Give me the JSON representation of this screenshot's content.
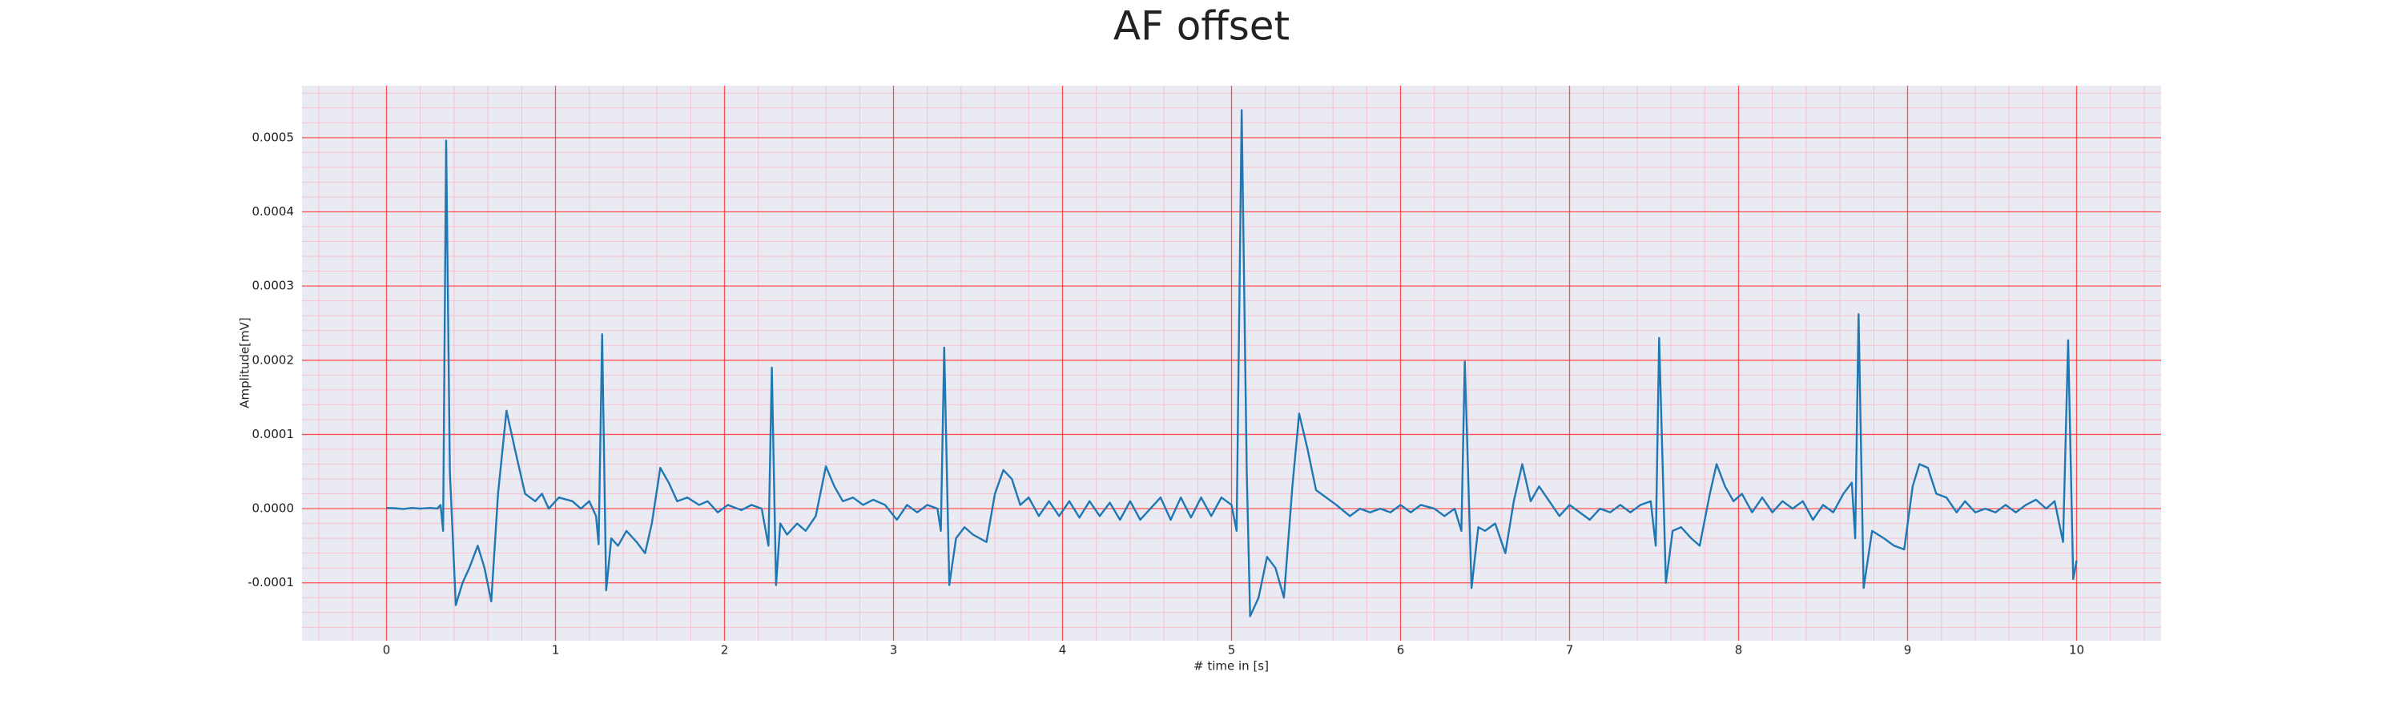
{
  "chart_data": {
    "type": "line",
    "title": "AF offset",
    "xlabel": "# time in [s]",
    "ylabel": "Amplitude[mV]",
    "color": "#1f77b4",
    "background": "#eaeaf2",
    "grid": true,
    "grid_color": "#ff3b3b",
    "minor_grid": true,
    "minor_grid_color": "#f7b8c6",
    "xlim": [
      -0.5,
      10.5
    ],
    "ylim": [
      -0.000178,
      0.00057
    ],
    "xticks": [
      0,
      1,
      2,
      3,
      4,
      5,
      6,
      7,
      8,
      9,
      10
    ],
    "yticks": [
      -0.0001,
      {
        "value": 0,
        "label": "0.0000"
      },
      0.0001,
      0.0002,
      0.0003,
      0.0004,
      0.0005
    ],
    "x": [
      0,
      0.05,
      0.1,
      0.15,
      0.2,
      0.26,
      0.3,
      0.32,
      0.335,
      0.353,
      0.375,
      0.41,
      0.45,
      0.49,
      0.54,
      0.58,
      0.62,
      0.66,
      0.71,
      0.76,
      0.82,
      0.88,
      0.92,
      0.96,
      1.02,
      1.1,
      1.15,
      1.2,
      1.24,
      1.255,
      1.276,
      1.3,
      1.33,
      1.37,
      1.42,
      1.48,
      1.53,
      1.57,
      1.62,
      1.67,
      1.72,
      1.78,
      1.85,
      1.9,
      1.96,
      2.02,
      2.1,
      2.16,
      2.22,
      2.26,
      2.28,
      2.305,
      2.33,
      2.37,
      2.43,
      2.48,
      2.54,
      2.6,
      2.65,
      2.7,
      2.76,
      2.82,
      2.88,
      2.95,
      3.02,
      3.08,
      3.14,
      3.2,
      3.26,
      3.28,
      3.3,
      3.33,
      3.37,
      3.42,
      3.47,
      3.55,
      3.6,
      3.65,
      3.7,
      3.75,
      3.8,
      3.86,
      3.92,
      3.98,
      4.04,
      4.1,
      4.16,
      4.22,
      4.28,
      4.34,
      4.4,
      4.46,
      4.52,
      4.58,
      4.64,
      4.7,
      4.76,
      4.82,
      4.88,
      4.94,
      5.0,
      5.03,
      5.06,
      5.09,
      5.11,
      5.16,
      5.21,
      5.26,
      5.31,
      5.36,
      5.4,
      5.45,
      5.5,
      5.56,
      5.62,
      5.7,
      5.76,
      5.82,
      5.88,
      5.94,
      6.0,
      6.06,
      6.12,
      6.2,
      6.26,
      6.32,
      6.36,
      6.38,
      6.42,
      6.46,
      6.5,
      6.56,
      6.62,
      6.67,
      6.72,
      6.77,
      6.82,
      6.88,
      6.94,
      7.0,
      7.06,
      7.12,
      7.18,
      7.24,
      7.3,
      7.36,
      7.42,
      7.48,
      7.51,
      7.53,
      7.57,
      7.61,
      7.66,
      7.72,
      7.77,
      7.83,
      7.87,
      7.92,
      7.97,
      8.02,
      8.08,
      8.14,
      8.2,
      8.26,
      8.32,
      8.38,
      8.44,
      8.5,
      8.56,
      8.62,
      8.67,
      8.69,
      8.71,
      8.74,
      8.79,
      8.86,
      8.92,
      8.98,
      9.03,
      9.07,
      9.12,
      9.17,
      9.23,
      9.29,
      9.34,
      9.4,
      9.46,
      9.52,
      9.58,
      9.64,
      9.7,
      9.76,
      9.82,
      9.87,
      9.92,
      9.95,
      9.98,
      10.0
    ],
    "values": [
      1e-06,
      5e-07,
      -5e-07,
      1e-06,
      0,
      1e-06,
      0,
      5e-06,
      -3e-05,
      0.000496,
      5e-05,
      -0.00013,
      -0.0001,
      -8e-05,
      -5e-05,
      -8e-05,
      -0.000125,
      2e-05,
      0.000132,
      8e-05,
      2e-05,
      1e-05,
      2e-05,
      0,
      1.5e-05,
      1e-05,
      0,
      1e-05,
      -1e-05,
      -4.8e-05,
      0.000235,
      -0.00011,
      -4e-05,
      -5e-05,
      -3e-05,
      -4.5e-05,
      -6e-05,
      -2e-05,
      5.5e-05,
      3.5e-05,
      1e-05,
      1.5e-05,
      5e-06,
      1e-05,
      -5e-06,
      5e-06,
      -2e-06,
      5e-06,
      0,
      -5e-05,
      0.00019,
      -0.000103,
      -2e-05,
      -3.5e-05,
      -2e-05,
      -3e-05,
      -1e-05,
      5.7e-05,
      3e-05,
      1e-05,
      1.5e-05,
      5e-06,
      1.2e-05,
      5e-06,
      -1.5e-05,
      5e-06,
      -5e-06,
      5e-06,
      0,
      -3e-05,
      0.000217,
      -0.000103,
      -4e-05,
      -2.5e-05,
      -3.5e-05,
      -4.5e-05,
      2e-05,
      5.2e-05,
      4e-05,
      5e-06,
      1.5e-05,
      -1e-05,
      1e-05,
      -1e-05,
      1e-05,
      -1.2e-05,
      1e-05,
      -1e-05,
      8e-06,
      -1.5e-05,
      1e-05,
      -1.5e-05,
      0,
      1.5e-05,
      -1.5e-05,
      1.5e-05,
      -1.2e-05,
      1.5e-05,
      -1e-05,
      1.5e-05,
      5e-06,
      -3e-05,
      0.000537,
      5e-05,
      -0.000145,
      -0.00012,
      -6.5e-05,
      -8e-05,
      -0.00012,
      3e-05,
      0.000128,
      8e-05,
      2.5e-05,
      1.5e-05,
      5e-06,
      -1e-05,
      0,
      -5e-06,
      0,
      -5e-06,
      5e-06,
      -5e-06,
      5e-06,
      0,
      -1e-05,
      0,
      -3e-05,
      0.000198,
      -0.000107,
      -2.5e-05,
      -3e-05,
      -2e-05,
      -6e-05,
      1e-05,
      6e-05,
      1e-05,
      3e-05,
      1e-05,
      -1e-05,
      5e-06,
      -5e-06,
      -1.5e-05,
      0,
      -5e-06,
      5e-06,
      -5e-06,
      5e-06,
      1e-05,
      -5e-05,
      0.00023,
      -0.0001,
      -3e-05,
      -2.5e-05,
      -4e-05,
      -5e-05,
      2e-05,
      6e-05,
      3e-05,
      1e-05,
      2e-05,
      -5e-06,
      1.5e-05,
      -5e-06,
      1e-05,
      0,
      1e-05,
      -1.5e-05,
      5e-06,
      -5e-06,
      2e-05,
      3.5e-05,
      -4e-05,
      0.000262,
      -0.000107,
      -3e-05,
      -4e-05,
      -5e-05,
      -5.5e-05,
      3e-05,
      6e-05,
      5.5e-05,
      2e-05,
      1.5e-05,
      -5e-06,
      1e-05,
      -5e-06,
      0,
      -5e-06,
      5e-06,
      -5e-06,
      5e-06,
      1.2e-05,
      0,
      1e-05,
      -4.5e-05,
      0.000227,
      -9.5e-05,
      -7e-05
    ]
  }
}
